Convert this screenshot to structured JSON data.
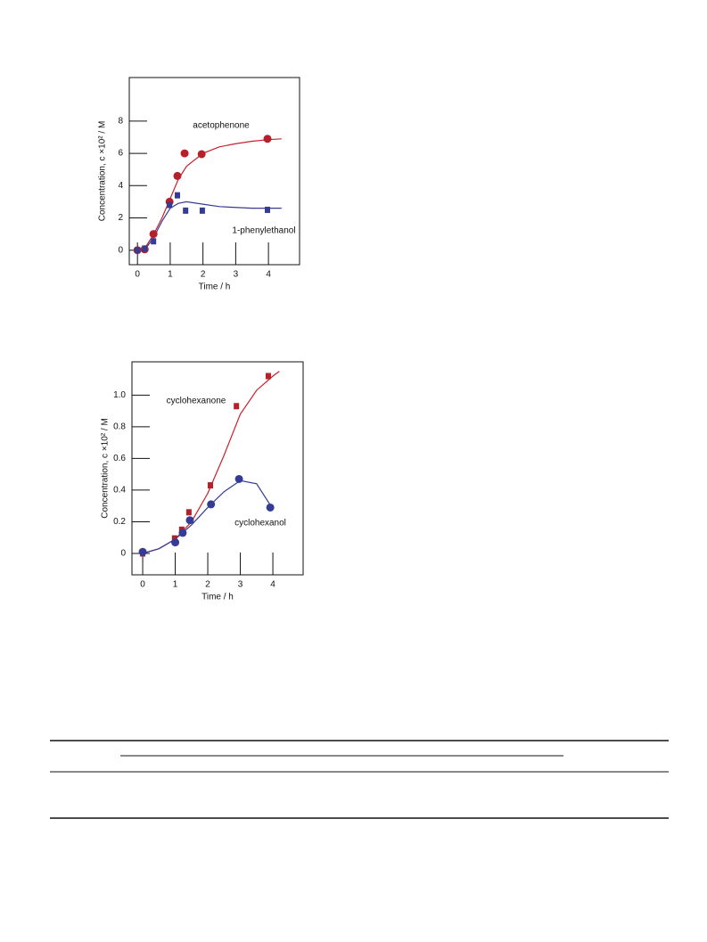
{
  "chart_data": [
    {
      "type": "scatter",
      "x_label": "Time / h",
      "y_label": "Concentration, c ×10² / M",
      "xlim": [
        -0.25,
        4.95
      ],
      "ylim": [
        -0.9,
        10.7
      ],
      "xticks": [
        0,
        1,
        2,
        3,
        4
      ],
      "yticks": [
        0,
        2,
        4,
        6,
        8
      ],
      "series": [
        {
          "name": "acetophenone",
          "color": "#b5202a",
          "marker": "circle",
          "x": [
            0,
            0.22,
            0.49,
            0.98,
            1.22,
            1.44,
            1.96,
            3.97
          ],
          "values": [
            0,
            0.05,
            1.0,
            3.0,
            4.6,
            6.0,
            5.95,
            6.9
          ]
        },
        {
          "name": "1-phenylethanol",
          "color": "#343c96",
          "marker": "square",
          "x": [
            0,
            0.22,
            0.49,
            0.98,
            1.22,
            1.47,
            1.98,
            3.97
          ],
          "values": [
            0,
            0.1,
            0.55,
            2.8,
            3.4,
            2.45,
            2.45,
            2.5
          ]
        }
      ],
      "fits": [
        {
          "color": "#c8202a",
          "x": [
            0,
            0.25,
            0.5,
            0.75,
            1,
            1.25,
            1.5,
            2,
            2.5,
            3,
            3.5,
            4,
            4.4
          ],
          "values": [
            0,
            0.2,
            1.0,
            2.0,
            3.2,
            4.4,
            5.2,
            6.0,
            6.4,
            6.6,
            6.75,
            6.85,
            6.9
          ]
        },
        {
          "color": "#343c96",
          "x": [
            0,
            0.25,
            0.5,
            0.75,
            1,
            1.25,
            1.5,
            2,
            2.5,
            3,
            3.5,
            4,
            4.4
          ],
          "values": [
            0,
            0.1,
            0.8,
            1.8,
            2.6,
            2.9,
            3.0,
            2.85,
            2.7,
            2.65,
            2.6,
            2.6,
            2.6
          ]
        }
      ]
    },
    {
      "type": "scatter",
      "x_label": "Time / h",
      "y_label": "Concentration, c ×10² / M",
      "xlim": [
        -0.33,
        4.93
      ],
      "ylim": [
        -0.135,
        1.21
      ],
      "xticks": [
        0,
        1,
        2,
        3,
        4
      ],
      "yticks": [
        0,
        0.2,
        0.4,
        0.6,
        0.8,
        {
          "value": 1,
          "label": "1.0"
        }
      ],
      "series": [
        {
          "name": "cyclohexanone",
          "color": "#b5202a",
          "marker": "square",
          "x": [
            0,
            0.98,
            1.2,
            1.42,
            2.08,
            2.88,
            3.86
          ],
          "values": [
            0,
            0.095,
            0.15,
            0.26,
            0.43,
            0.93,
            1.12
          ]
        },
        {
          "name": "cyclohexanol",
          "color": "#343c96",
          "marker": "circle",
          "x": [
            0,
            1.0,
            1.23,
            1.45,
            2.1,
            2.96,
            3.92
          ],
          "values": [
            0.01,
            0.07,
            0.13,
            0.21,
            0.31,
            0.47,
            0.29
          ]
        }
      ],
      "fits": [
        {
          "color": "#c8202a",
          "x": [
            0,
            0.5,
            1,
            1.5,
            2,
            2.5,
            3,
            3.5,
            4,
            4.2
          ],
          "values": [
            0,
            0.03,
            0.09,
            0.2,
            0.38,
            0.62,
            0.88,
            1.03,
            1.12,
            1.15
          ]
        },
        {
          "color": "#343c96",
          "x": [
            0,
            0.5,
            1,
            1.5,
            2,
            2.5,
            3,
            3.5,
            4
          ],
          "values": [
            0,
            0.03,
            0.09,
            0.18,
            0.29,
            0.39,
            0.46,
            0.44,
            0.28
          ]
        }
      ]
    }
  ]
}
